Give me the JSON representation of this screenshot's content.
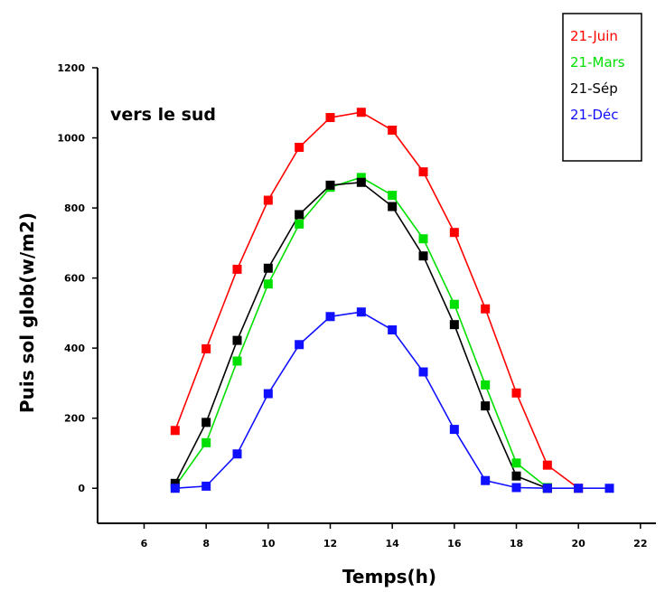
{
  "chart_data": {
    "type": "line",
    "title": "",
    "annotation": "vers le sud",
    "xlabel": "Temps(h)",
    "ylabel": "Puis sol glob(w/m2)",
    "xlim": [
      4.5,
      22.5
    ],
    "ylim": [
      -100,
      1200
    ],
    "xticks": [
      6,
      8,
      10,
      12,
      14,
      16,
      18,
      20,
      22
    ],
    "yticks": [
      0,
      200,
      400,
      600,
      800,
      1000,
      1200
    ],
    "grid": false,
    "legend_position": "top-right",
    "series": [
      {
        "name": "21-Juin",
        "color": "#ff0000",
        "x": [
          7,
          8,
          9,
          10,
          11,
          12,
          13,
          14,
          15,
          16,
          17,
          18,
          19,
          20
        ],
        "y": [
          165,
          398,
          625,
          822,
          973,
          1058,
          1073,
          1022,
          903,
          730,
          512,
          272,
          66,
          0
        ]
      },
      {
        "name": "21-Mars",
        "color": "#00e000",
        "x": [
          7,
          8,
          9,
          10,
          11,
          12,
          13,
          14,
          15,
          16,
          17,
          18,
          19
        ],
        "y": [
          5,
          130,
          363,
          583,
          754,
          859,
          887,
          836,
          712,
          525,
          295,
          72,
          2
        ]
      },
      {
        "name": "21-Sép",
        "color": "#000000",
        "x": [
          7,
          8,
          9,
          10,
          11,
          12,
          13,
          14,
          15,
          16,
          17,
          18,
          19
        ],
        "y": [
          14,
          188,
          422,
          628,
          781,
          865,
          873,
          804,
          663,
          467,
          235,
          35,
          0
        ]
      },
      {
        "name": "21-Déc",
        "color": "#1010ff",
        "x": [
          7,
          8,
          9,
          10,
          11,
          12,
          13,
          14,
          15,
          16,
          17,
          18,
          19,
          20,
          21
        ],
        "y": [
          0,
          6,
          98,
          270,
          410,
          490,
          503,
          452,
          332,
          168,
          22,
          2,
          0,
          0,
          0
        ]
      }
    ]
  }
}
